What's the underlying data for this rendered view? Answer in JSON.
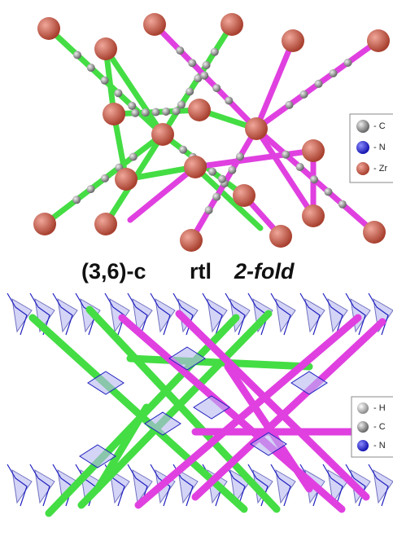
{
  "top_legend": [
    "- C",
    "- N",
    "- Zr"
  ],
  "caption": {
    "net": "(3,6)-c",
    "topology": "rtl",
    "fold": "2-fold"
  },
  "bottom_legend": [
    "- H",
    "- C",
    "- N"
  ]
}
